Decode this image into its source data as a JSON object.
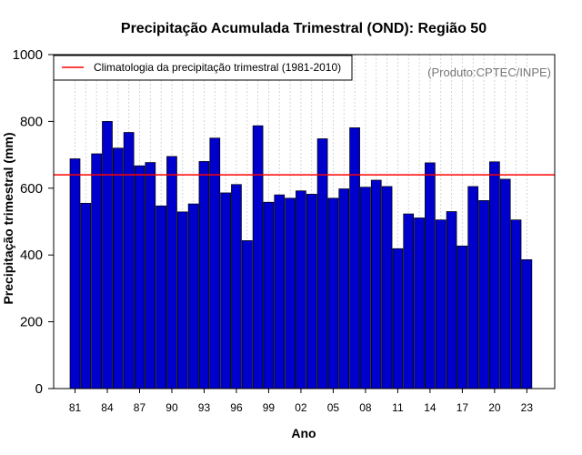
{
  "chart_data": {
    "type": "bar",
    "title": "Precipitação Acumulada Trimestral (OND): Região 50",
    "xlabel": "Ano",
    "ylabel": "Precipitação trimestral (mm)",
    "ylim": [
      0,
      1000
    ],
    "yticks": [
      "0",
      "200",
      "400",
      "600",
      "800",
      "1000"
    ],
    "xtick_labels": [
      "81",
      "84",
      "87",
      "90",
      "93",
      "96",
      "99",
      "02",
      "05",
      "08",
      "11",
      "14",
      "17",
      "20",
      "23"
    ],
    "categories": [
      "1981",
      "1982",
      "1983",
      "1984",
      "1985",
      "1986",
      "1987",
      "1988",
      "1989",
      "1990",
      "1991",
      "1992",
      "1993",
      "1994",
      "1995",
      "1996",
      "1997",
      "1998",
      "1999",
      "2000",
      "2001",
      "2002",
      "2003",
      "2004",
      "2005",
      "2006",
      "2007",
      "2008",
      "2009",
      "2010",
      "2011",
      "2012",
      "2013",
      "2014",
      "2015",
      "2016",
      "2017",
      "2018",
      "2019",
      "2020",
      "2021",
      "2022",
      "2023"
    ],
    "values": [
      688,
      555,
      703,
      800,
      720,
      767,
      667,
      677,
      547,
      695,
      529,
      553,
      680,
      750,
      586,
      611,
      443,
      787,
      558,
      580,
      570,
      592,
      582,
      748,
      570,
      598,
      781,
      603,
      624,
      605,
      419,
      523,
      511,
      676,
      505,
      530,
      427,
      605,
      563,
      679,
      627,
      505,
      386
    ],
    "bar_color": "#0000cc",
    "climatology": {
      "value": 640,
      "label": "Climatologia da precipitação trimestral (1981-2010)",
      "color": "#ff0000"
    },
    "legend_position": "top-left",
    "credit": "(Produto:CPTEC/INPE)",
    "grid": "vertical-dotted"
  }
}
